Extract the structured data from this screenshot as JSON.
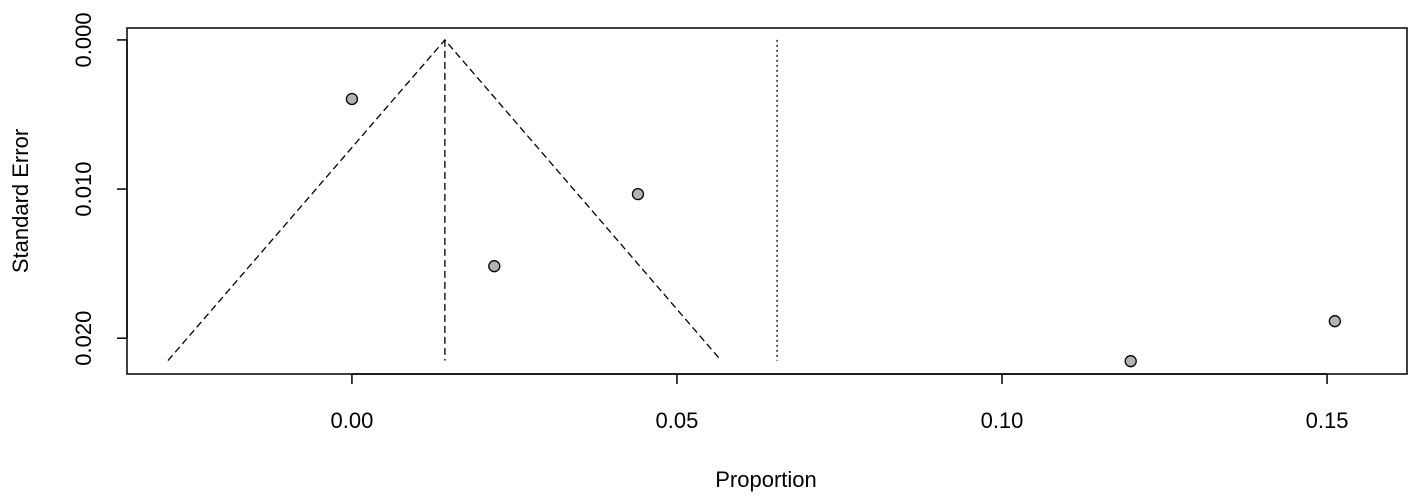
{
  "chart_data": {
    "type": "scatter",
    "x_label": "Proportion",
    "y_label": "Standard Error",
    "x": [
      0.0,
      0.044,
      0.0219,
      0.1198,
      0.1512
    ],
    "values": [
      0.00396,
      0.01034,
      0.01517,
      0.02154,
      0.01886
    ],
    "color": "#b3b3b3",
    "xlim": [
      -0.0346,
      0.1623
    ],
    "ylim": [
      -0.0008,
      0.0224
    ],
    "y_reversed": true,
    "xticks": [
      {
        "value": 0,
        "label": "0.00"
      },
      {
        "value": 0.05,
        "label": "0.05"
      },
      {
        "value": 0.1,
        "label": "0.10"
      },
      {
        "value": 0.15,
        "label": "0.15"
      }
    ],
    "yticks": [
      {
        "value": 0,
        "label": "0.000"
      },
      {
        "value": 0.01,
        "label": "0.010"
      },
      {
        "value": 0.02,
        "label": "0.020"
      }
    ],
    "funnel": {
      "x": [
        -0.0283,
        0.0143,
        0.0568
      ],
      "y": [
        0.0215,
        0,
        0.0215
      ],
      "style": "dashed"
    },
    "reference_lines": [
      {
        "x": 0.0143,
        "y": [
          0,
          0.0215
        ],
        "style": "dashed"
      },
      {
        "x": 0.0654,
        "y": [
          0,
          0.0215
        ],
        "style": "dotted"
      }
    ]
  }
}
